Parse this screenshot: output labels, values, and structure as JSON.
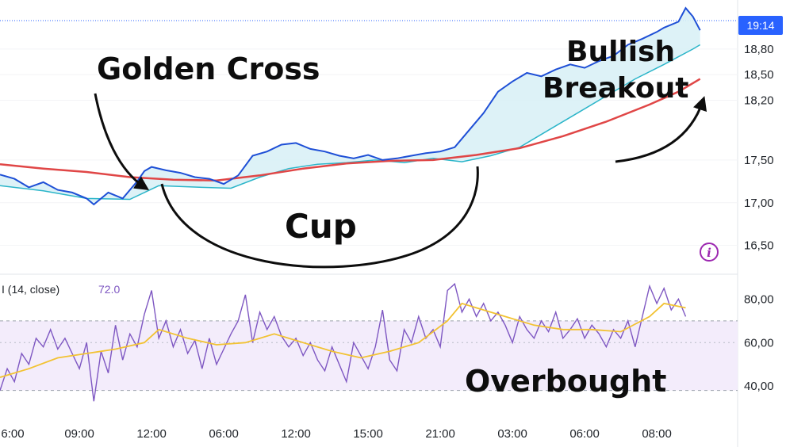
{
  "price_tag": {
    "text": "19:14",
    "color": "#2962ff"
  },
  "indicator_info": "i icon",
  "rsi_panel": {
    "title": "I (14, close)",
    "value": "72.0"
  },
  "annotations": {
    "golden_cross": "Golden Cross",
    "cup": "Cup",
    "bullish": "Bullish",
    "breakout": "Breakout",
    "overbought": "Overbought"
  },
  "colors": {
    "price": "#1e4fd6",
    "ma_fast": "#2bb5c9",
    "ma_slow": "#e04646",
    "band_fill": "#d9f1f6",
    "rsi": "#7e57c2",
    "rsi_ma": "#f2c232",
    "rsi_band": "#f3ecfb"
  },
  "chart_data": [
    {
      "type": "line",
      "panel": "price",
      "ylim": [
        16.2,
        19.3
      ],
      "y_ticks": [
        "16,50",
        "17,00",
        "17,50",
        "18,20",
        "18,50",
        "18,80"
      ],
      "x_ticks": [
        "6:00",
        "09:00",
        "12:00",
        "06:00",
        "12:00",
        "15:00",
        "21:00",
        "03:00",
        "06:00",
        "08:00"
      ],
      "x_tick_index": [
        0,
        11,
        21,
        31,
        41,
        51,
        61,
        71,
        81,
        91
      ],
      "x_range": [
        0,
        100
      ],
      "series": [
        {
          "role": "price",
          "points": [
            [
              0,
              17.33
            ],
            [
              2,
              17.28
            ],
            [
              4,
              17.18
            ],
            [
              6,
              17.24
            ],
            [
              8,
              17.15
            ],
            [
              10,
              17.12
            ],
            [
              12,
              17.05
            ],
            [
              13,
              16.98
            ],
            [
              15,
              17.12
            ],
            [
              17,
              17.05
            ],
            [
              19,
              17.25
            ],
            [
              20,
              17.37
            ],
            [
              21,
              17.42
            ],
            [
              23,
              17.38
            ],
            [
              25,
              17.35
            ],
            [
              27,
              17.3
            ],
            [
              29,
              17.28
            ],
            [
              31,
              17.22
            ],
            [
              33,
              17.32
            ],
            [
              35,
              17.55
            ],
            [
              37,
              17.6
            ],
            [
              39,
              17.68
            ],
            [
              41,
              17.7
            ],
            [
              43,
              17.63
            ],
            [
              45,
              17.6
            ],
            [
              47,
              17.55
            ],
            [
              49,
              17.52
            ],
            [
              51,
              17.56
            ],
            [
              53,
              17.5
            ],
            [
              55,
              17.52
            ],
            [
              57,
              17.55
            ],
            [
              59,
              17.58
            ],
            [
              61,
              17.6
            ],
            [
              63,
              17.65
            ],
            [
              65,
              17.85
            ],
            [
              67,
              18.05
            ],
            [
              69,
              18.3
            ],
            [
              71,
              18.42
            ],
            [
              73,
              18.52
            ],
            [
              75,
              18.48
            ],
            [
              77,
              18.56
            ],
            [
              79,
              18.62
            ],
            [
              81,
              18.58
            ],
            [
              83,
              18.66
            ],
            [
              85,
              18.72
            ],
            [
              87,
              18.85
            ],
            [
              89,
              18.92
            ],
            [
              91,
              19.0
            ],
            [
              92,
              19.05
            ],
            [
              94,
              19.12
            ],
            [
              95,
              19.28
            ],
            [
              96,
              19.18
            ],
            [
              97,
              19.02
            ]
          ]
        },
        {
          "role": "fast_ma",
          "points": [
            [
              0,
              17.2
            ],
            [
              6,
              17.14
            ],
            [
              12,
              17.05
            ],
            [
              18,
              17.04
            ],
            [
              22,
              17.2
            ],
            [
              28,
              17.18
            ],
            [
              32,
              17.17
            ],
            [
              36,
              17.3
            ],
            [
              40,
              17.4
            ],
            [
              44,
              17.45
            ],
            [
              48,
              17.47
            ],
            [
              52,
              17.5
            ],
            [
              56,
              17.47
            ],
            [
              60,
              17.52
            ],
            [
              64,
              17.48
            ],
            [
              68,
              17.55
            ],
            [
              72,
              17.65
            ],
            [
              76,
              17.85
            ],
            [
              80,
              18.05
            ],
            [
              84,
              18.25
            ],
            [
              88,
              18.45
            ],
            [
              92,
              18.62
            ],
            [
              96,
              18.8
            ],
            [
              97,
              18.85
            ]
          ]
        },
        {
          "role": "slow_ma",
          "points": [
            [
              0,
              17.45
            ],
            [
              6,
              17.4
            ],
            [
              12,
              17.36
            ],
            [
              18,
              17.3
            ],
            [
              24,
              17.27
            ],
            [
              30,
              17.26
            ],
            [
              36,
              17.32
            ],
            [
              42,
              17.4
            ],
            [
              48,
              17.46
            ],
            [
              54,
              17.49
            ],
            [
              60,
              17.5
            ],
            [
              66,
              17.56
            ],
            [
              72,
              17.64
            ],
            [
              78,
              17.78
            ],
            [
              84,
              17.95
            ],
            [
              90,
              18.15
            ],
            [
              94,
              18.3
            ],
            [
              97,
              18.45
            ]
          ]
        }
      ]
    },
    {
      "type": "line",
      "panel": "rsi",
      "ylim": [
        28,
        90
      ],
      "y_ticks": [
        "40,00",
        "60,00",
        "80,00"
      ],
      "bands": [
        38,
        70
      ],
      "x_range": [
        0,
        100
      ],
      "series": [
        {
          "role": "rsi",
          "points": [
            [
              0,
              38
            ],
            [
              1,
              48
            ],
            [
              2,
              42
            ],
            [
              3,
              55
            ],
            [
              4,
              50
            ],
            [
              5,
              62
            ],
            [
              6,
              58
            ],
            [
              7,
              66
            ],
            [
              8,
              57
            ],
            [
              9,
              62
            ],
            [
              10,
              55
            ],
            [
              11,
              48
            ],
            [
              12,
              60
            ],
            [
              13,
              33
            ],
            [
              14,
              56
            ],
            [
              15,
              46
            ],
            [
              16,
              68
            ],
            [
              17,
              52
            ],
            [
              18,
              64
            ],
            [
              19,
              58
            ],
            [
              20,
              73
            ],
            [
              21,
              84
            ],
            [
              22,
              62
            ],
            [
              23,
              70
            ],
            [
              24,
              58
            ],
            [
              25,
              66
            ],
            [
              26,
              55
            ],
            [
              27,
              61
            ],
            [
              28,
              48
            ],
            [
              29,
              62
            ],
            [
              30,
              50
            ],
            [
              31,
              57
            ],
            [
              32,
              64
            ],
            [
              33,
              70
            ],
            [
              34,
              82
            ],
            [
              35,
              60
            ],
            [
              36,
              74
            ],
            [
              37,
              66
            ],
            [
              38,
              72
            ],
            [
              39,
              63
            ],
            [
              40,
              58
            ],
            [
              41,
              62
            ],
            [
              42,
              54
            ],
            [
              43,
              60
            ],
            [
              44,
              52
            ],
            [
              45,
              47
            ],
            [
              46,
              58
            ],
            [
              47,
              50
            ],
            [
              48,
              42
            ],
            [
              49,
              60
            ],
            [
              50,
              54
            ],
            [
              51,
              48
            ],
            [
              52,
              58
            ],
            [
              53,
              75
            ],
            [
              54,
              52
            ],
            [
              55,
              47
            ],
            [
              56,
              66
            ],
            [
              57,
              60
            ],
            [
              58,
              72
            ],
            [
              59,
              62
            ],
            [
              60,
              66
            ],
            [
              61,
              58
            ],
            [
              62,
              84
            ],
            [
              63,
              87
            ],
            [
              64,
              74
            ],
            [
              65,
              80
            ],
            [
              66,
              72
            ],
            [
              67,
              78
            ],
            [
              68,
              70
            ],
            [
              69,
              74
            ],
            [
              70,
              68
            ],
            [
              71,
              60
            ],
            [
              72,
              72
            ],
            [
              73,
              66
            ],
            [
              74,
              62
            ],
            [
              75,
              70
            ],
            [
              76,
              65
            ],
            [
              77,
              74
            ],
            [
              78,
              62
            ],
            [
              79,
              66
            ],
            [
              80,
              71
            ],
            [
              81,
              62
            ],
            [
              82,
              68
            ],
            [
              83,
              64
            ],
            [
              84,
              58
            ],
            [
              85,
              66
            ],
            [
              86,
              62
            ],
            [
              87,
              70
            ],
            [
              88,
              58
            ],
            [
              89,
              72
            ],
            [
              90,
              86
            ],
            [
              91,
              78
            ],
            [
              92,
              85
            ],
            [
              93,
              75
            ],
            [
              94,
              80
            ],
            [
              95,
              72
            ]
          ]
        },
        {
          "role": "rsi_ma",
          "points": [
            [
              0,
              44
            ],
            [
              4,
              48
            ],
            [
              8,
              53
            ],
            [
              12,
              55
            ],
            [
              16,
              57
            ],
            [
              20,
              60
            ],
            [
              22,
              66
            ],
            [
              26,
              62
            ],
            [
              30,
              59
            ],
            [
              34,
              60
            ],
            [
              38,
              64
            ],
            [
              42,
              60
            ],
            [
              46,
              56
            ],
            [
              50,
              53
            ],
            [
              54,
              56
            ],
            [
              58,
              60
            ],
            [
              62,
              70
            ],
            [
              64,
              78
            ],
            [
              66,
              76
            ],
            [
              70,
              72
            ],
            [
              74,
              68
            ],
            [
              78,
              66
            ],
            [
              82,
              66
            ],
            [
              86,
              65
            ],
            [
              90,
              72
            ],
            [
              92,
              78
            ],
            [
              95,
              76
            ]
          ]
        }
      ]
    }
  ]
}
